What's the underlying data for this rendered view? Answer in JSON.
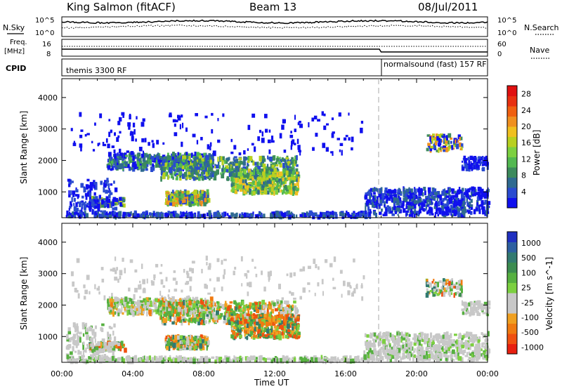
{
  "header": {
    "station": "King Salmon (fitACF)",
    "beam": "Beam 13",
    "date": "08/Jul/2011"
  },
  "left_labels": {
    "nsky": "N.Sky",
    "freq_line1": "Freq.",
    "freq_line2": "[MHz]",
    "cpid": "CPID"
  },
  "right_labels": {
    "nsearch": "N.Search",
    "nave": "Nave"
  },
  "strip_ticks": {
    "noise_top": "10^5",
    "noise_bottom": "10^0",
    "noise_right_top": "10^5",
    "noise_right_bottom": "10^0",
    "freq_top": "16",
    "freq_bottom": "8",
    "nave_top": "60",
    "nave_bottom": "0"
  },
  "cpid": {
    "first": "themis 3300 RF",
    "second": "normalsound (fast) 157 RF"
  },
  "chart_data": [
    {
      "type": "heatmap",
      "title": "",
      "xlabel": "Time UT",
      "ylabel": "Slant Range [km]",
      "xlim": [
        0,
        24
      ],
      "ylim": [
        180,
        4600
      ],
      "x_ticks": [
        "00:00",
        "04:00",
        "08:00",
        "12:00",
        "16:00",
        "20:00",
        "00:00"
      ],
      "y_ticks": [
        "1000",
        "2000",
        "3000",
        "4000"
      ],
      "colorbar": {
        "label": "Power [dB]",
        "ticks": [
          "4",
          "8",
          "12",
          "16",
          "20",
          "24",
          "28"
        ],
        "colors": [
          "#1010ee",
          "#2a4bd0",
          "#2f6a90",
          "#3c8a5c",
          "#52b850",
          "#7cd040",
          "#b8d020",
          "#f0c020",
          "#f09020",
          "#f06010",
          "#e83010",
          "#e01010"
        ]
      }
    },
    {
      "type": "heatmap",
      "title": "",
      "xlabel": "Time UT",
      "ylabel": "Slant Range [km]",
      "xlim": [
        0,
        24
      ],
      "ylim": [
        180,
        4600
      ],
      "x_ticks": [
        "00:00",
        "04:00",
        "08:00",
        "12:00",
        "16:00",
        "20:00",
        "00:00"
      ],
      "y_ticks": [
        "1000",
        "2000",
        "3000",
        "4000"
      ],
      "colorbar": {
        "label": "Velocity [m s^-1]",
        "ticks": [
          "1000",
          "500",
          "100",
          "25",
          "-25",
          "-100",
          "-500",
          "-1000"
        ],
        "colors": [
          "#2030c0",
          "#2d5fa0",
          "#327a70",
          "#3c8c50",
          "#56b040",
          "#7cd040",
          "#c8c8c8",
          "#c8c8c8",
          "#f0a020",
          "#f07a10",
          "#f05010",
          "#e82010"
        ]
      }
    }
  ]
}
